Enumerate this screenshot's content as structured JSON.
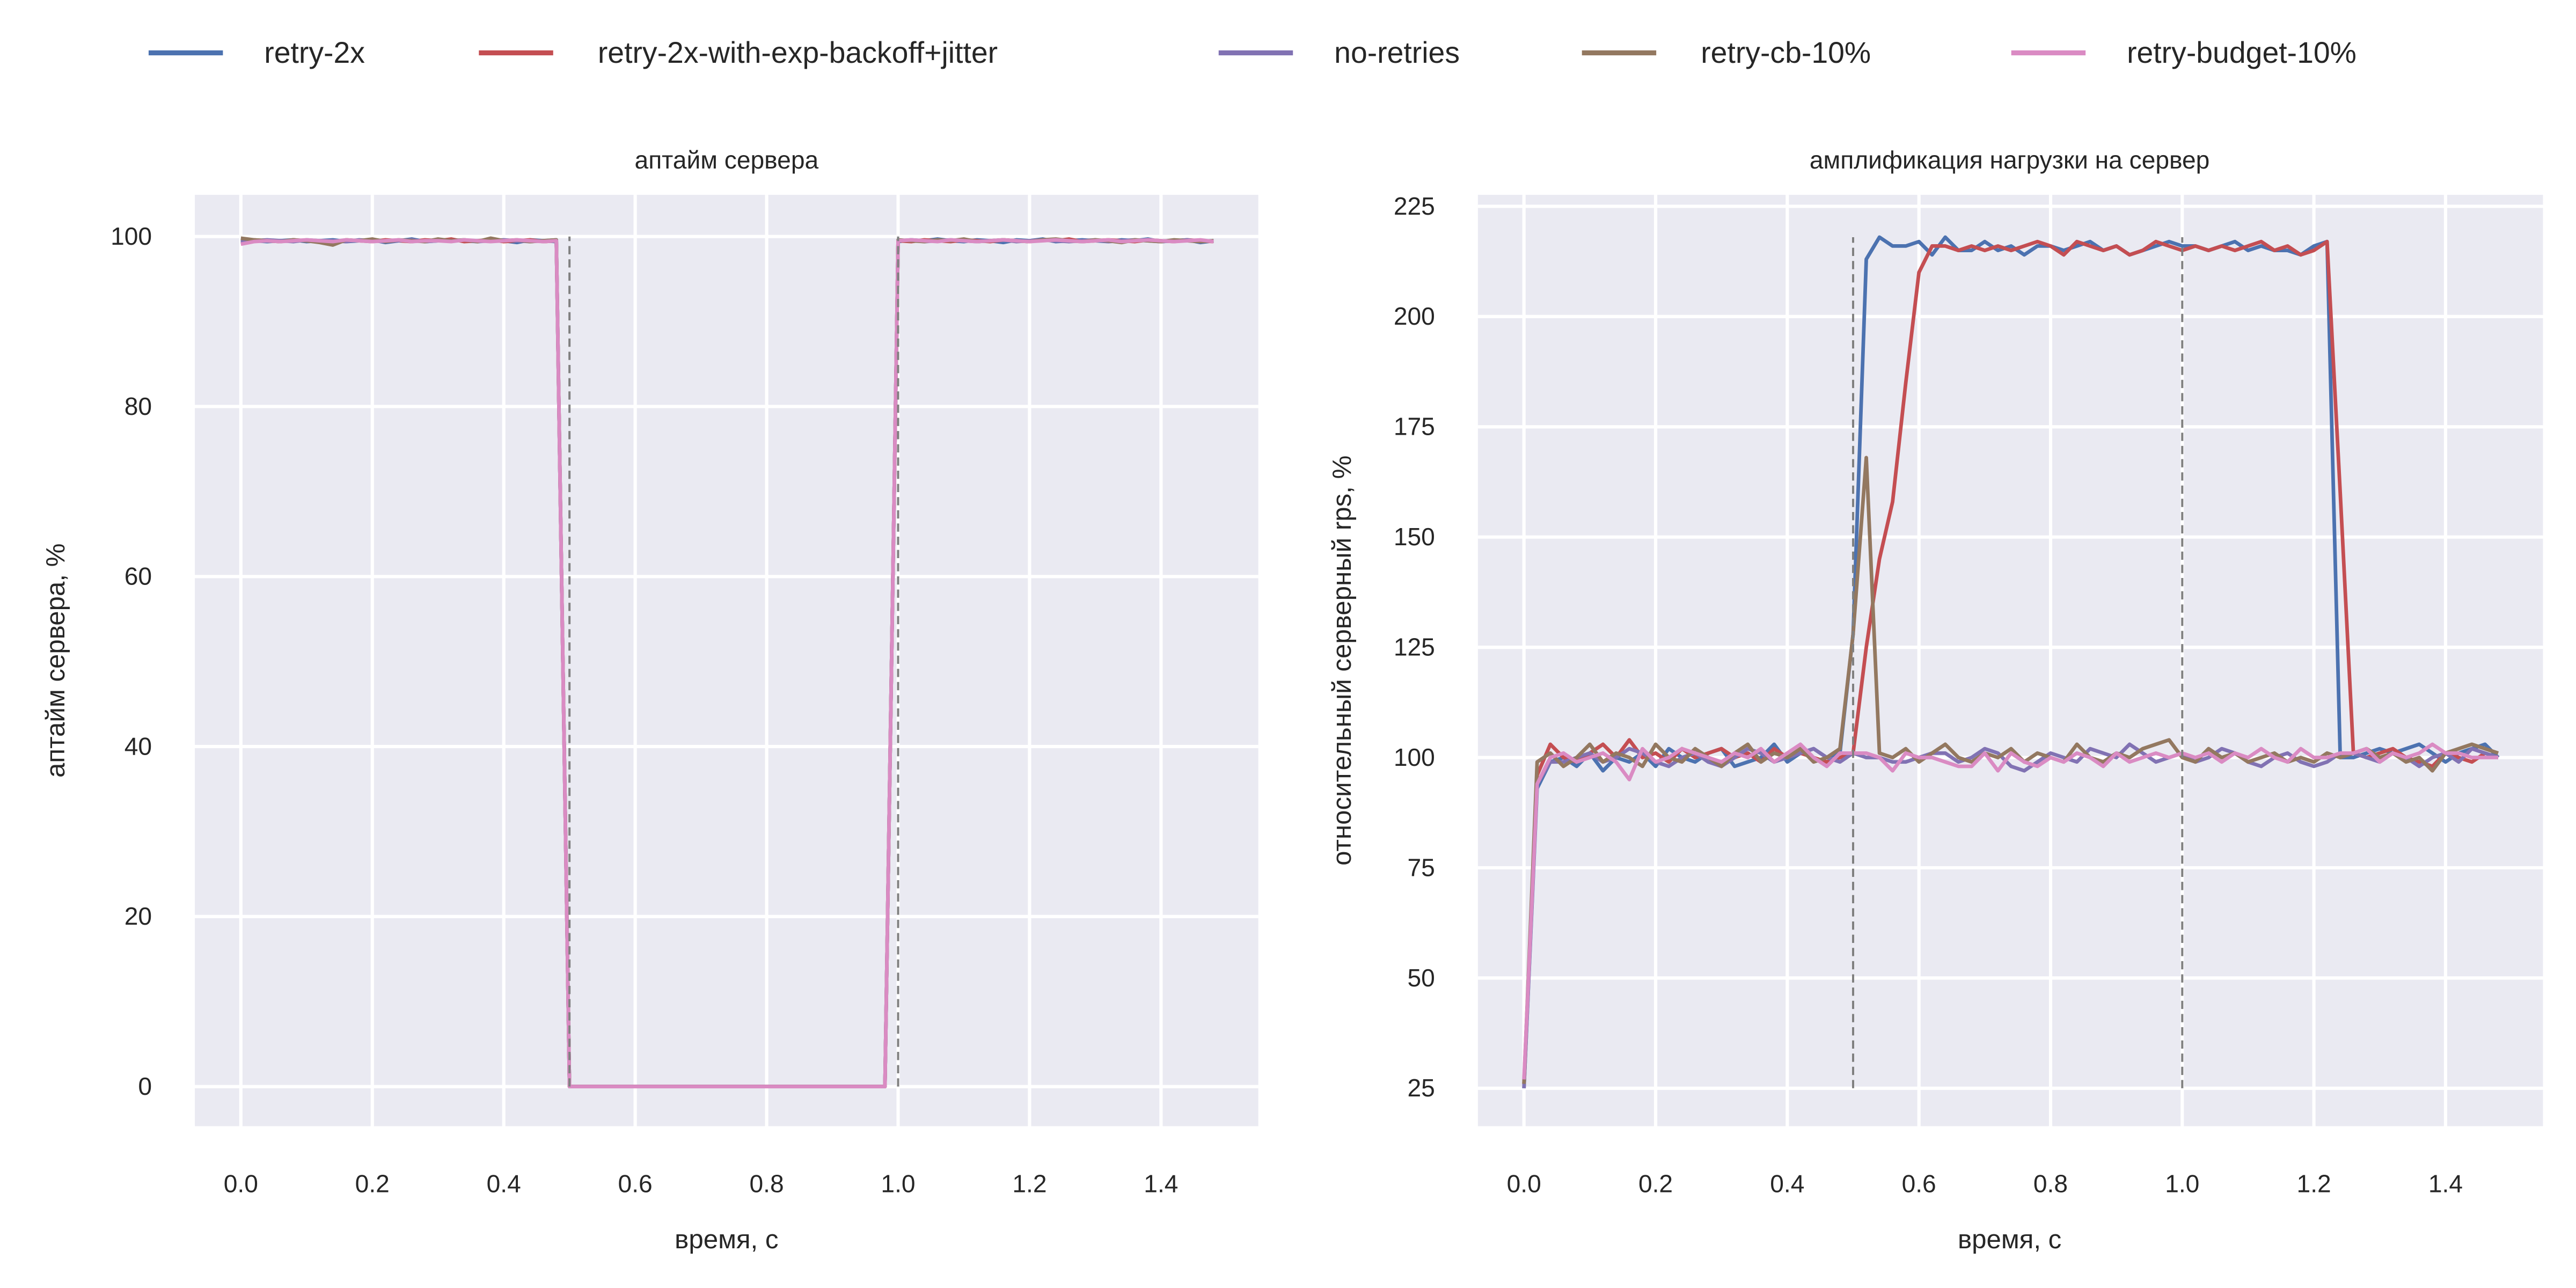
{
  "legend": {
    "placement": "top-center",
    "items": [
      {
        "label": "retry-2x",
        "color": "#4c72b0"
      },
      {
        "label": "retry-2x-with-exp-backoff+jitter",
        "color": "#c44e52"
      },
      {
        "label": "no-retries",
        "color": "#8172b3"
      },
      {
        "label": "retry-cb-10%",
        "color": "#937860"
      },
      {
        "label": "retry-budget-10%",
        "color": "#da8bc3"
      }
    ]
  },
  "chart_data": [
    {
      "type": "line",
      "title": "аптайм сервера",
      "xlabel": "время, с",
      "ylabel": "аптайм сервера, %",
      "xlim": [
        -0.07,
        1.548
      ],
      "ylim": [
        -4.66,
        104.9
      ],
      "xticks": [
        "0.0",
        "0.2",
        "0.4",
        "0.6",
        "0.8",
        "1.0",
        "1.2",
        "1.4"
      ],
      "yticks": [
        "0",
        "20",
        "40",
        "60",
        "80",
        "100"
      ],
      "grid": true,
      "x_start": 0,
      "x_step": 0.02,
      "vlines": [
        {
          "x": 0.5,
          "y": [
            0,
            100
          ]
        },
        {
          "x": 1.0,
          "y": [
            0,
            100
          ]
        }
      ],
      "series": [
        {
          "name": "retry-2x",
          "values": [
            99.3,
            99.5,
            99.4,
            99.5,
            99.6,
            99.4,
            99.5,
            99.6,
            99.4,
            99.5,
            99.6,
            99.3,
            99.5,
            99.7,
            99.4,
            99.5,
            99.6,
            99.5,
            99.4,
            99.6,
            99.5,
            99.3,
            99.6,
            99.5,
            99.4,
            0,
            0,
            0,
            0,
            0,
            0,
            0,
            0,
            0,
            0,
            0,
            0,
            0,
            0,
            0,
            0,
            0,
            0,
            0,
            0,
            0,
            0,
            0,
            0,
            0,
            99.4,
            99.6,
            99.5,
            99.7,
            99.5,
            99.4,
            99.6,
            99.5,
            99.3,
            99.6,
            99.5,
            99.7,
            99.4,
            99.5,
            99.6,
            99.5,
            99.4,
            99.6,
            99.5,
            99.7,
            99.4,
            99.5,
            99.6,
            99.3,
            99.5
          ]
        },
        {
          "name": "retry-2x-with-exp-backoff+jitter",
          "values": [
            99.5,
            99.6,
            99.5,
            99.4,
            99.6,
            99.5,
            99.4,
            99.3,
            99.6,
            99.5,
            99.4,
            99.6,
            99.5,
            99.4,
            99.6,
            99.5,
            99.7,
            99.4,
            99.5,
            99.6,
            99.4,
            99.5,
            99.6,
            99.4,
            99.5,
            0,
            0,
            0,
            0,
            0,
            0,
            0,
            0,
            0,
            0,
            0,
            0,
            0,
            0,
            0,
            0,
            0,
            0,
            0,
            0,
            0,
            0,
            0,
            0,
            0,
            99.5,
            99.4,
            99.6,
            99.5,
            99.4,
            99.6,
            99.5,
            99.4,
            99.6,
            99.5,
            99.4,
            99.6,
            99.5,
            99.7,
            99.4,
            99.5,
            99.6,
            99.5,
            99.4,
            99.6,
            99.5,
            99.4,
            99.6,
            99.5,
            99.4
          ]
        },
        {
          "name": "no-retries",
          "values": [
            99.4,
            99.5,
            99.6,
            99.5,
            99.4,
            99.6,
            99.5,
            99.5,
            99.4,
            99.6,
            99.5,
            99.4,
            99.5,
            99.6,
            99.4,
            99.5,
            99.5,
            99.6,
            99.4,
            99.5,
            99.6,
            99.5,
            99.4,
            99.5,
            99.6,
            0,
            0,
            0,
            0,
            0,
            0,
            0,
            0,
            0,
            0,
            0,
            0,
            0,
            0,
            0,
            0,
            0,
            0,
            0,
            0,
            0,
            0,
            0,
            0,
            0,
            99.5,
            99.6,
            99.4,
            99.5,
            99.6,
            99.5,
            99.4,
            99.5,
            99.6,
            99.4,
            99.5,
            99.6,
            99.5,
            99.4,
            99.5,
            99.6,
            99.4,
            99.5,
            99.6,
            99.5,
            99.4,
            99.5,
            99.6,
            99.4,
            99.5
          ]
        },
        {
          "name": "retry-cb-10%",
          "values": [
            99.8,
            99.6,
            99.5,
            99.4,
            99.6,
            99.5,
            99.3,
            99.0,
            99.6,
            99.5,
            99.7,
            99.4,
            99.6,
            99.5,
            99.4,
            99.7,
            99.5,
            99.6,
            99.4,
            99.8,
            99.5,
            99.6,
            99.4,
            99.5,
            99.6,
            0,
            0,
            0,
            0,
            0,
            0,
            0,
            0,
            0,
            0,
            0,
            0,
            0,
            0,
            0,
            0,
            0,
            0,
            0,
            0,
            0,
            0,
            0,
            0,
            0,
            99.6,
            99.5,
            99.4,
            99.6,
            99.5,
            99.7,
            99.4,
            99.5,
            99.6,
            99.5,
            99.4,
            99.6,
            99.7,
            99.5,
            99.4,
            99.6,
            99.5,
            99.3,
            99.6,
            99.5,
            99.4,
            99.6,
            99.5,
            99.4,
            99.5
          ]
        },
        {
          "name": "retry-budget-10%",
          "values": [
            99.1,
            99.4,
            99.5,
            99.4,
            99.5,
            99.6,
            99.5,
            99.4,
            99.6,
            99.5,
            99.4,
            99.5,
            99.6,
            99.4,
            99.5,
            99.5,
            99.4,
            99.6,
            99.5,
            99.4,
            99.5,
            99.6,
            99.5,
            99.4,
            99.5,
            0,
            0,
            0,
            0,
            0,
            0,
            0,
            0,
            0,
            0,
            0,
            0,
            0,
            0,
            0,
            0,
            0,
            0,
            0,
            0,
            0,
            0,
            0,
            0,
            0,
            99.5,
            99.6,
            99.5,
            99.4,
            99.6,
            99.5,
            99.4,
            99.5,
            99.6,
            99.5,
            99.4,
            99.5,
            99.6,
            99.5,
            99.4,
            99.5,
            99.6,
            99.4,
            99.5,
            99.6,
            99.5,
            99.4,
            99.5,
            99.6,
            99.4
          ]
        }
      ]
    },
    {
      "type": "line",
      "title": "амплификация нагрузки на сервер",
      "xlabel": "время, с",
      "ylabel": "относительный серверный rps, %",
      "xlim": [
        -0.07,
        1.548
      ],
      "ylim": [
        16.4,
        227.6
      ],
      "xticks": [
        "0.0",
        "0.2",
        "0.4",
        "0.6",
        "0.8",
        "1.0",
        "1.2",
        "1.4"
      ],
      "yticks": [
        "25",
        "50",
        "75",
        "100",
        "125",
        "150",
        "175",
        "200",
        "225"
      ],
      "grid": true,
      "x_start": 0,
      "x_step": 0.02,
      "vlines": [
        {
          "x": 0.5,
          "y": [
            25,
            218
          ]
        },
        {
          "x": 1.0,
          "y": [
            25,
            218
          ]
        }
      ],
      "series": [
        {
          "name": "retry-2x",
          "values": [
            25,
            93,
            99,
            100,
            98,
            101,
            97,
            100,
            99,
            101,
            98,
            102,
            100,
            99,
            101,
            102,
            98,
            99,
            100,
            103,
            99,
            101,
            102,
            100,
            101,
            128,
            213,
            218,
            216,
            216,
            217,
            214,
            218,
            215,
            215,
            217,
            215,
            216,
            214,
            216,
            216,
            215,
            216,
            217,
            215,
            216,
            214,
            215,
            216,
            217,
            216,
            216,
            215,
            216,
            217,
            215,
            216,
            215,
            215,
            214,
            216,
            217,
            100,
            100,
            101,
            102,
            101,
            102,
            103,
            101,
            99,
            101,
            102,
            103,
            100
          ]
        },
        {
          "name": "retry-2x-with-exp-backoff+jitter",
          "values": [
            26,
            96,
            103,
            100,
            99,
            101,
            103,
            100,
            104,
            100,
            101,
            99,
            102,
            100,
            101,
            102,
            100,
            101,
            99,
            102,
            100,
            101,
            100,
            99,
            100,
            101,
            125,
            145,
            158,
            185,
            210,
            216,
            216,
            215,
            216,
            215,
            216,
            215,
            216,
            217,
            216,
            214,
            217,
            216,
            215,
            216,
            214,
            215,
            217,
            216,
            215,
            216,
            215,
            216,
            215,
            216,
            217,
            215,
            216,
            214,
            215,
            217,
            160,
            101,
            100,
            101,
            102,
            100,
            99,
            98,
            101,
            100,
            99,
            101,
            100
          ]
        },
        {
          "name": "no-retries",
          "values": [
            25,
            94,
            99,
            99,
            100,
            101,
            99,
            100,
            102,
            101,
            99,
            98,
            100,
            101,
            99,
            98,
            100,
            102,
            101,
            99,
            100,
            101,
            102,
            100,
            99,
            101,
            100,
            100,
            99,
            99,
            100,
            101,
            101,
            99,
            100,
            102,
            101,
            98,
            97,
            99,
            101,
            100,
            99,
            102,
            101,
            100,
            103,
            101,
            99,
            100,
            101,
            99,
            100,
            102,
            101,
            99,
            98,
            100,
            101,
            99,
            98,
            99,
            101,
            101,
            100,
            99,
            101,
            100,
            98,
            100,
            101,
            99,
            102,
            101,
            100
          ]
        },
        {
          "name": "retry-cb-10%",
          "values": [
            26,
            99,
            101,
            98,
            100,
            103,
            99,
            101,
            100,
            98,
            103,
            100,
            99,
            102,
            100,
            98,
            101,
            103,
            99,
            101,
            100,
            102,
            99,
            100,
            102,
            128,
            168,
            101,
            100,
            102,
            99,
            101,
            103,
            100,
            99,
            101,
            100,
            102,
            99,
            101,
            100,
            99,
            103,
            100,
            99,
            101,
            100,
            102,
            103,
            104,
            100,
            99,
            102,
            100,
            101,
            99,
            100,
            101,
            99,
            100,
            99,
            101,
            100,
            101,
            102,
            100,
            101,
            99,
            100,
            97,
            101,
            102,
            103,
            102,
            101
          ]
        },
        {
          "name": "retry-budget-10%",
          "values": [
            27,
            94,
            100,
            101,
            99,
            100,
            101,
            99,
            95,
            102,
            99,
            100,
            102,
            101,
            100,
            99,
            101,
            100,
            102,
            99,
            101,
            103,
            100,
            98,
            101,
            101,
            101,
            100,
            97,
            101,
            100,
            100,
            99,
            98,
            98,
            101,
            97,
            101,
            99,
            98,
            100,
            99,
            101,
            100,
            98,
            101,
            99,
            100,
            101,
            100,
            101,
            100,
            101,
            99,
            101,
            100,
            102,
            100,
            99,
            102,
            100,
            100,
            101,
            101,
            102,
            99,
            101,
            100,
            101,
            103,
            101,
            101,
            100,
            100,
            100
          ]
        }
      ]
    }
  ]
}
